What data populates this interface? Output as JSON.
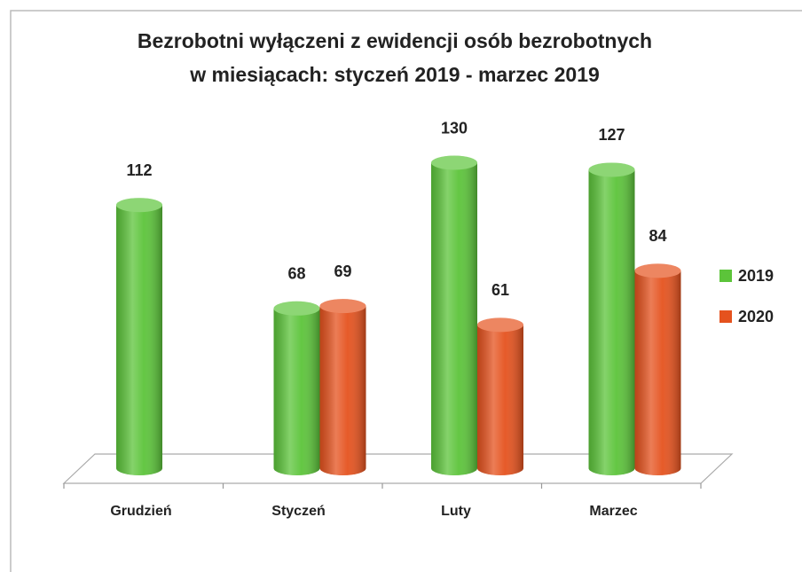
{
  "chart_data": {
    "type": "bar3d",
    "title": [
      "Bezrobotni wyłączeni z ewidencji osób bezrobotnych",
      "w miesiącach: styczeń 2019 - marzec 2019"
    ],
    "categories": [
      "Grudzień",
      "Styczeń",
      "Luty",
      "Marzec"
    ],
    "series": [
      {
        "name": "2019",
        "color": "#5cc43a",
        "values": [
          112,
          68,
          130,
          127
        ]
      },
      {
        "name": "2020",
        "color": "#e5521e",
        "values": [
          null,
          69,
          61,
          84
        ]
      }
    ],
    "legend": "right"
  }
}
